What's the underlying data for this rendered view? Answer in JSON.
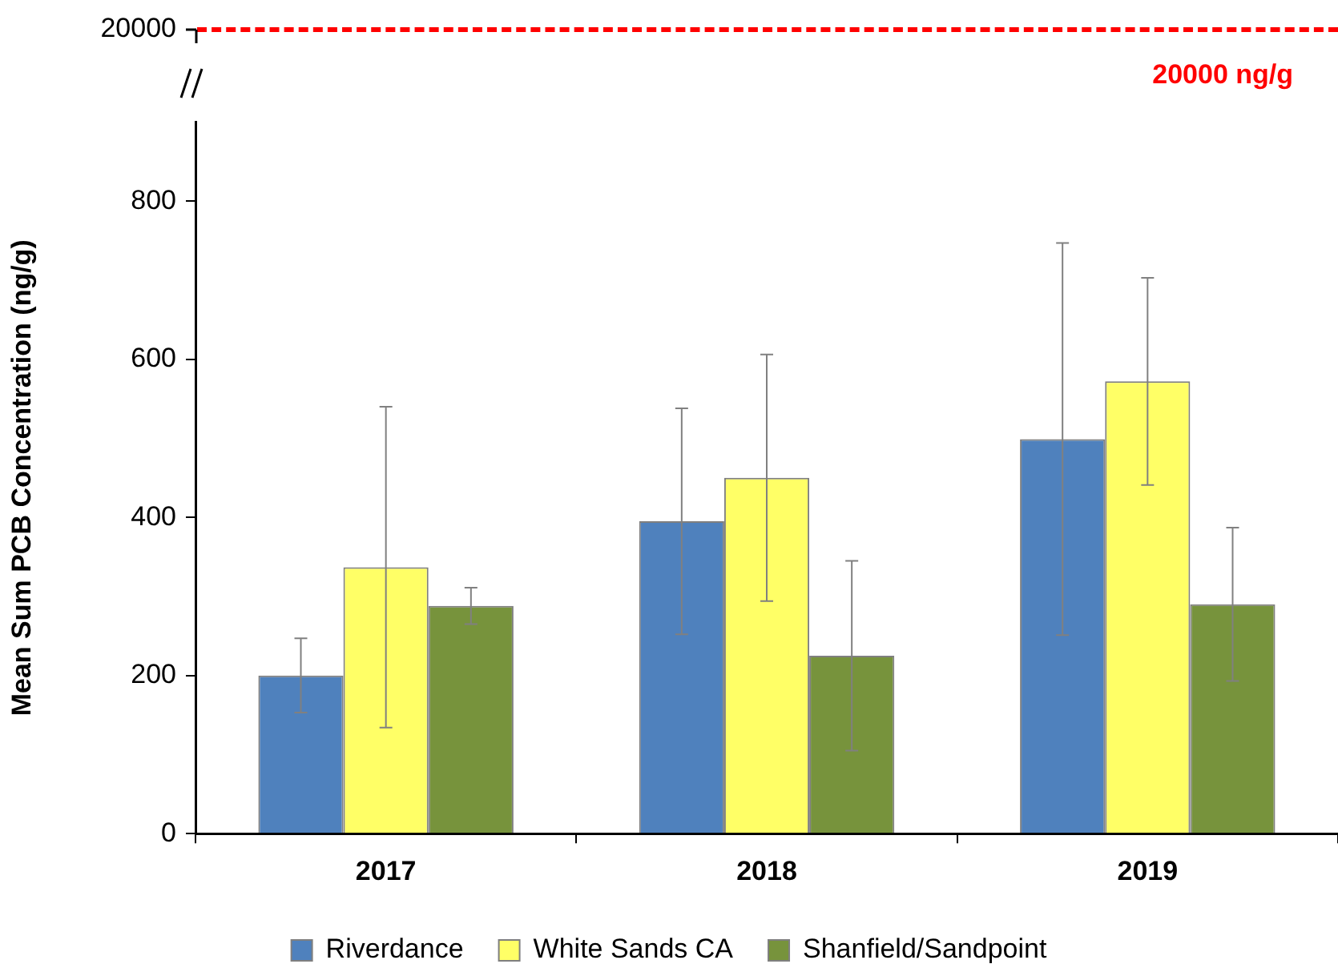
{
  "chart_data": {
    "type": "bar",
    "categories": [
      "2017",
      "2018",
      "2019"
    ],
    "ylabel": "Mean Sum PCB Concentration (ng/g)",
    "ylim": [
      0,
      900
    ],
    "yticks": [
      0,
      200,
      400,
      600,
      800
    ],
    "grid": false,
    "legend": "bottom",
    "annotations": [
      "20000",
      "20000 ng/g"
    ],
    "series": [
      {
        "name": "Riverdance",
        "color": "#4f81bd",
        "values": [
          200,
          395,
          499
        ],
        "errors": [
          47,
          143,
          248
        ]
      },
      {
        "name": "White Sands CA",
        "color": "#ffff66",
        "values": [
          337,
          450,
          572
        ],
        "errors": [
          203,
          156,
          131
        ]
      },
      {
        "name": "Shanfield/Sandpoint",
        "color": "#77933c",
        "values": [
          288,
          225,
          290
        ],
        "errors": [
          23,
          120,
          97
        ]
      }
    ]
  }
}
